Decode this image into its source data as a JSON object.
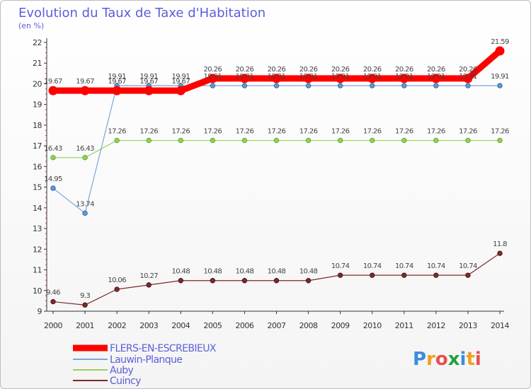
{
  "chart_data": {
    "type": "line",
    "title": "Evolution du Taux de Taxe d'Habitation",
    "subtitle": "(en %)",
    "xlabel": "",
    "ylabel": "",
    "x": [
      "2000",
      "2001",
      "2002",
      "2003",
      "2004",
      "2005",
      "2006",
      "2007",
      "2008",
      "2009",
      "2010",
      "2011",
      "2012",
      "2013",
      "2014"
    ],
    "ylim": [
      9,
      22
    ],
    "yticks": [
      "9",
      "10",
      "11",
      "12",
      "13",
      "14",
      "15",
      "16",
      "17",
      "18",
      "19",
      "20",
      "21",
      "22"
    ],
    "grid": false,
    "legend": "bottom-left",
    "series": [
      {
        "name": "FLERS-EN-ESCREBIEUX",
        "color": "#ff0000",
        "values": [
          19.67,
          19.67,
          19.67,
          19.67,
          19.67,
          20.26,
          20.26,
          20.26,
          20.26,
          20.26,
          20.26,
          20.26,
          20.26,
          20.26,
          21.59
        ],
        "labels": [
          "19.67",
          "19.67",
          "19.67",
          "19.67",
          "19.67",
          "20.26",
          "20.26",
          "20.26",
          "20.26",
          "20.26",
          "20.26",
          "20.26",
          "20.26",
          "20.26",
          "21.59"
        ]
      },
      {
        "name": "Lauwin-Planque",
        "color": "#5b9bd5",
        "values": [
          14.95,
          13.74,
          19.91,
          19.91,
          19.91,
          19.91,
          19.91,
          19.91,
          19.91,
          19.91,
          19.91,
          19.91,
          19.91,
          19.91,
          19.91
        ],
        "labels": [
          "14.95",
          "13.74",
          "19.91",
          "19.91",
          "19.91",
          "19.91",
          "19.91",
          "19.91",
          "19.91",
          "19.91",
          "19.91",
          "19.91",
          "19.91",
          "19.91",
          "19.91"
        ]
      },
      {
        "name": "Auby",
        "color": "#92d050",
        "values": [
          16.43,
          16.43,
          17.26,
          17.26,
          17.26,
          17.26,
          17.26,
          17.26,
          17.26,
          17.26,
          17.26,
          17.26,
          17.26,
          17.26,
          17.26
        ],
        "labels": [
          "16.43",
          "16.43",
          "17.26",
          "17.26",
          "17.26",
          "17.26",
          "17.26",
          "17.26",
          "17.26",
          "17.26",
          "17.26",
          "17.26",
          "17.26",
          "17.26",
          "17.26"
        ]
      },
      {
        "name": "Cuincy",
        "color": "#7b2a2a",
        "values": [
          9.46,
          9.3,
          10.06,
          10.27,
          10.48,
          10.48,
          10.48,
          10.48,
          10.48,
          10.74,
          10.74,
          10.74,
          10.74,
          10.74,
          11.8
        ],
        "labels": [
          "9.46",
          "9.3",
          "10.06",
          "10.27",
          "10.48",
          "10.48",
          "10.48",
          "10.48",
          "10.48",
          "10.74",
          "10.74",
          "10.74",
          "10.74",
          "10.74",
          "11.8"
        ]
      }
    ]
  },
  "logo": {
    "letters": [
      "P",
      "r",
      "o",
      "x",
      "i",
      "t",
      "i"
    ],
    "colors": [
      "#3a8de0",
      "#f0a020",
      "#e85050",
      "#20a040",
      "#3a8de0",
      "#f0a020",
      "#e85050"
    ]
  }
}
